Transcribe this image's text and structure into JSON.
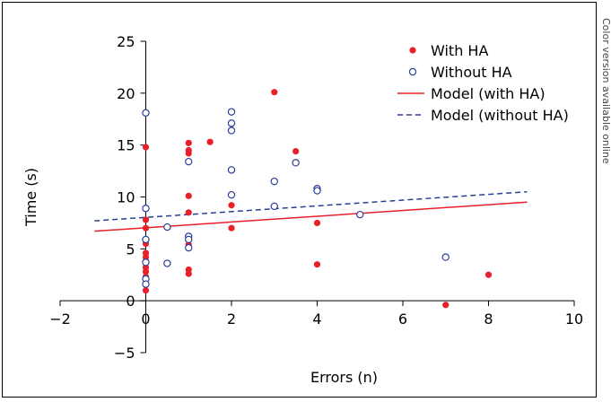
{
  "side_note": "Color version available online",
  "chart_data": {
    "type": "scatter",
    "xlabel": "Errors (n)",
    "ylabel": "Time (s)",
    "xlim": [
      -2,
      10
    ],
    "ylim": [
      -5,
      25
    ],
    "xticks": [
      -2,
      0,
      2,
      4,
      6,
      8,
      10
    ],
    "yticks": [
      -5,
      0,
      5,
      10,
      15,
      20,
      25
    ],
    "grid": false,
    "legend_position": "top-right",
    "series": [
      {
        "name": "With HA",
        "kind": "points",
        "marker": "filled-circle",
        "color": "#e8202a",
        "points": [
          [
            0,
            14.8
          ],
          [
            0,
            7.8
          ],
          [
            0,
            7.0
          ],
          [
            0,
            5.5
          ],
          [
            0,
            4.6
          ],
          [
            0,
            4.2
          ],
          [
            0,
            3.8
          ],
          [
            0,
            3.2
          ],
          [
            0,
            2.8
          ],
          [
            0,
            2.3
          ],
          [
            0,
            1.0
          ],
          [
            1,
            15.2
          ],
          [
            1,
            14.5
          ],
          [
            1,
            14.2
          ],
          [
            1,
            10.1
          ],
          [
            1,
            8.5
          ],
          [
            1,
            5.4
          ],
          [
            1,
            3.0
          ],
          [
            1,
            2.6
          ],
          [
            1.5,
            15.3
          ],
          [
            2,
            9.2
          ],
          [
            2,
            7.0
          ],
          [
            3,
            20.1
          ],
          [
            3.5,
            14.4
          ],
          [
            4,
            7.5
          ],
          [
            4,
            3.5
          ],
          [
            7,
            -0.4
          ],
          [
            8,
            2.5
          ]
        ]
      },
      {
        "name": "Without HA",
        "kind": "points",
        "marker": "open-circle",
        "color": "#2b3f96",
        "points": [
          [
            0,
            18.1
          ],
          [
            0,
            8.9
          ],
          [
            0,
            5.9
          ],
          [
            0,
            3.7
          ],
          [
            0,
            2.1
          ],
          [
            0,
            1.6
          ],
          [
            0.5,
            7.1
          ],
          [
            0.5,
            3.6
          ],
          [
            1,
            13.4
          ],
          [
            1,
            6.2
          ],
          [
            1,
            5.9
          ],
          [
            1,
            5.1
          ],
          [
            2,
            18.2
          ],
          [
            2,
            17.1
          ],
          [
            2,
            16.4
          ],
          [
            2,
            12.6
          ],
          [
            2,
            10.2
          ],
          [
            3,
            11.5
          ],
          [
            3,
            9.1
          ],
          [
            3.5,
            13.3
          ],
          [
            4,
            10.8
          ],
          [
            4,
            10.6
          ],
          [
            5,
            8.3
          ],
          [
            7,
            4.2
          ]
        ]
      },
      {
        "name": "Model (with HA)",
        "kind": "line",
        "style": "solid",
        "color": "#e8202a",
        "x": [
          -1.2,
          8.9
        ],
        "y": [
          6.7,
          9.5
        ]
      },
      {
        "name": "Model (without HA)",
        "kind": "line",
        "style": "dashed",
        "color": "#2b3f96",
        "x": [
          -1.2,
          8.9
        ],
        "y": [
          7.7,
          10.5
        ]
      }
    ]
  }
}
